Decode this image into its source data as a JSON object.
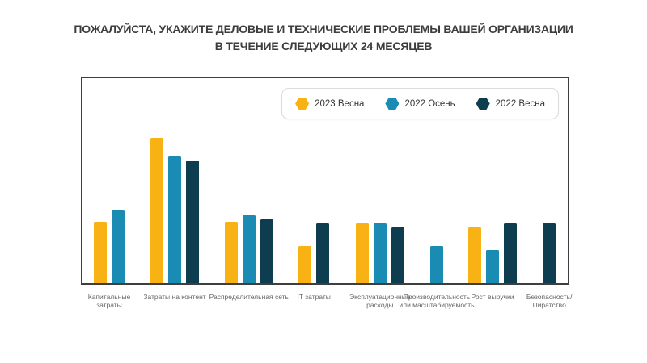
{
  "title": {
    "line1": "ПОЖАЛУЙСТА, УКАЖИТЕ ДЕЛОВЫЕ И ТЕХНИЧЕСКИЕ ПРОБЛЕМЫ ВАШЕЙ ОРГАНИЗАЦИИ",
    "line2": "В ТЕЧЕНИЕ СЛЕДУЮЩИХ 24 МЕСЯЦЕВ"
  },
  "legend": {
    "position": "top-right",
    "items": [
      {
        "label": "2023 Весна",
        "color": "#F8B213"
      },
      {
        "label": "2022 Осень",
        "color": "#1A8BB3"
      },
      {
        "label": "2022 Весна",
        "color": "#0E3D50"
      }
    ]
  },
  "chart_data": {
    "type": "bar",
    "title": "ПОЖАЛУЙСТА, УКАЖИТЕ ДЕЛОВЫЕ И ТЕХНИЧЕСКИЕ ПРОБЛЕМЫ ВАШЕЙ ОРГАНИЗАЦИИ В ТЕЧЕНИЕ СЛЕДУЮЩИХ 24 МЕСЯЦЕВ",
    "xlabel": "",
    "ylabel": "",
    "value_units": "relative bar height, % of plot area (chart shows no y-axis ticks or data labels)",
    "ylim": [
      0,
      100
    ],
    "grid": false,
    "legend_position": "top-right",
    "categories": [
      "Капитальные затраты",
      "Затраты на контент",
      "Распределительная сеть",
      "IT затраты",
      "Эксплуатационные расходы",
      "Производительность или масштабируемость",
      "Рост выручки",
      "Безопасность/Пиратство"
    ],
    "category_label_lines": [
      [
        "Капитальные",
        "затраты"
      ],
      [
        "Затраты на контент"
      ],
      [
        "Распределительная сеть"
      ],
      [
        "IT затраты"
      ],
      [
        "Эксплуатационные",
        "расходы"
      ],
      [
        "Производительность",
        "или масштабируемость"
      ],
      [
        "Рост выручки"
      ],
      [
        "Безопасность/",
        "Пиратство"
      ]
    ],
    "group_centers_pct": [
      5.5,
      19.0,
      34.3,
      47.7,
      61.3,
      73.0,
      84.5,
      96.2
    ],
    "series": [
      {
        "name": "2023 Весна",
        "color": "#F8B213",
        "values": [
          30,
          71,
          30,
          18,
          29,
          null,
          27,
          null
        ]
      },
      {
        "name": "2022 Осень",
        "color": "#1A8BB3",
        "values": [
          36,
          62,
          33,
          null,
          29,
          18,
          16,
          null
        ]
      },
      {
        "name": "2022 Весна",
        "color": "#0E3D50",
        "values": [
          null,
          60,
          31,
          29,
          27,
          null,
          29,
          29
        ]
      }
    ]
  }
}
